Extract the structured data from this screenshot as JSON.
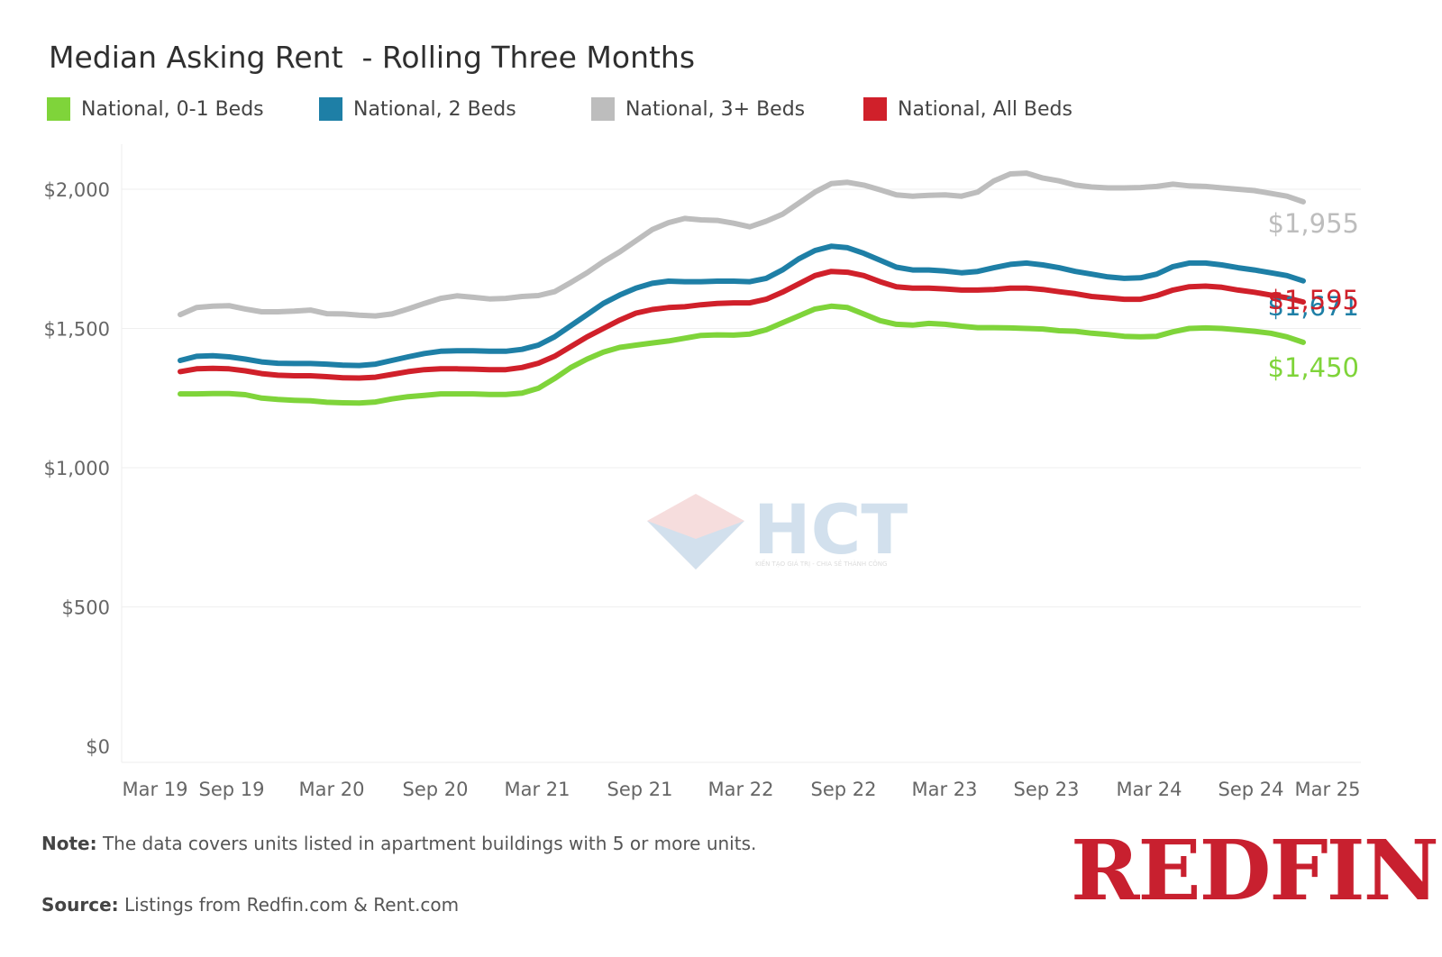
{
  "title": "Median Asking Rent  - Rolling Three Months",
  "legend": [
    {
      "label": "National, 0-1 Beds",
      "color": "#7fd43a"
    },
    {
      "label": "National, 2 Beds",
      "color": "#1e7fa6"
    },
    {
      "label": "National, 3+ Beds",
      "color": "#bdbdbd"
    },
    {
      "label": "National, All Beds",
      "color": "#d0202a"
    }
  ],
  "note_label": "Note:",
  "note_text": " The data covers units listed in apartment buildings with 5 or more units.",
  "source_label": "Source:",
  "source_text": " Listings from Redfin.com & Rent.com",
  "brand": "REDFIN",
  "watermark_text": "HCT",
  "watermark_tagline": "KIẾN TẠO GIÁ TRỊ - CHIA SẺ THÀNH CÔNG",
  "chart_data": {
    "type": "line",
    "title": "Median Asking Rent  - Rolling Three Months",
    "x_tick_labels": [
      "Mar 19",
      "Sep 19",
      "Mar 20",
      "Sep 20",
      "Mar 21",
      "Sep 21",
      "Mar 22",
      "Sep 22",
      "Mar 23",
      "Sep 23",
      "Mar 24",
      "Sep 24",
      "Mar 25"
    ],
    "y_tick_labels": [
      "$0",
      "$500",
      "$1,000",
      "$1,500",
      "$2,000"
    ],
    "y_ticks": [
      0,
      500,
      1000,
      1500,
      2000
    ],
    "ylim": [
      0,
      2150
    ],
    "grid": true,
    "legend_position": "top",
    "x": [
      "2019-04",
      "2019-05",
      "2019-06",
      "2019-07",
      "2019-08",
      "2019-09",
      "2019-10",
      "2019-11",
      "2019-12",
      "2020-01",
      "2020-02",
      "2020-03",
      "2020-04",
      "2020-05",
      "2020-06",
      "2020-07",
      "2020-08",
      "2020-09",
      "2020-10",
      "2020-11",
      "2020-12",
      "2021-01",
      "2021-02",
      "2021-03",
      "2021-04",
      "2021-05",
      "2021-06",
      "2021-07",
      "2021-08",
      "2021-09",
      "2021-10",
      "2021-11",
      "2021-12",
      "2022-01",
      "2022-02",
      "2022-03",
      "2022-04",
      "2022-05",
      "2022-06",
      "2022-07",
      "2022-08",
      "2022-09",
      "2022-10",
      "2022-11",
      "2022-12",
      "2023-01",
      "2023-02",
      "2023-03",
      "2023-04",
      "2023-05",
      "2023-06",
      "2023-07",
      "2023-08",
      "2023-09",
      "2023-10",
      "2023-11",
      "2023-12",
      "2024-01",
      "2024-02",
      "2024-03",
      "2024-04",
      "2024-05",
      "2024-06",
      "2024-07",
      "2024-08",
      "2024-09",
      "2024-10",
      "2024-11",
      "2024-12",
      "2025-01"
    ],
    "series": [
      {
        "name": "National, 3+ Beds",
        "color": "#bdbdbd",
        "values": [
          1550,
          1575,
          1580,
          1582,
          1570,
          1560,
          1560,
          1562,
          1566,
          1553,
          1552,
          1548,
          1545,
          1552,
          1570,
          1590,
          1608,
          1617,
          1612,
          1606,
          1608,
          1615,
          1618,
          1632,
          1665,
          1700,
          1740,
          1775,
          1815,
          1855,
          1880,
          1895,
          1890,
          1888,
          1878,
          1865,
          1885,
          1910,
          1950,
          1990,
          2020,
          2025,
          2015,
          1998,
          1980,
          1975,
          1978,
          1980,
          1975,
          1990,
          2030,
          2055,
          2058,
          2040,
          2030,
          2015,
          2008,
          2005,
          2005,
          2006,
          2010,
          2018,
          2012,
          2010,
          2005,
          2000,
          1995,
          1985,
          1975,
          1955
        ],
        "end_label": "$1,955"
      },
      {
        "name": "National, 2 Beds",
        "color": "#1e7fa6",
        "values": [
          1385,
          1400,
          1402,
          1398,
          1390,
          1380,
          1375,
          1374,
          1374,
          1372,
          1368,
          1367,
          1372,
          1385,
          1398,
          1410,
          1418,
          1420,
          1420,
          1418,
          1418,
          1425,
          1440,
          1470,
          1510,
          1550,
          1590,
          1620,
          1645,
          1662,
          1670,
          1668,
          1668,
          1670,
          1670,
          1668,
          1680,
          1710,
          1750,
          1780,
          1795,
          1790,
          1770,
          1745,
          1720,
          1710,
          1710,
          1706,
          1700,
          1705,
          1718,
          1730,
          1735,
          1728,
          1718,
          1705,
          1695,
          1685,
          1680,
          1682,
          1695,
          1722,
          1735,
          1735,
          1728,
          1718,
          1710,
          1700,
          1690,
          1671
        ],
        "end_label": "$1,671"
      },
      {
        "name": "National, All Beds",
        "color": "#d0202a",
        "values": [
          1345,
          1355,
          1357,
          1355,
          1348,
          1338,
          1332,
          1330,
          1330,
          1327,
          1323,
          1322,
          1325,
          1335,
          1345,
          1352,
          1355,
          1355,
          1354,
          1352,
          1352,
          1360,
          1375,
          1400,
          1435,
          1470,
          1500,
          1530,
          1555,
          1568,
          1575,
          1578,
          1585,
          1590,
          1592,
          1592,
          1605,
          1630,
          1660,
          1690,
          1705,
          1702,
          1690,
          1668,
          1650,
          1645,
          1645,
          1642,
          1638,
          1638,
          1640,
          1645,
          1645,
          1640,
          1632,
          1625,
          1615,
          1610,
          1605,
          1605,
          1618,
          1638,
          1650,
          1652,
          1648,
          1638,
          1630,
          1620,
          1610,
          1595
        ],
        "end_label": "$1,595"
      },
      {
        "name": "National, 0-1 Beds",
        "color": "#7fd43a",
        "values": [
          1265,
          1265,
          1266,
          1266,
          1262,
          1250,
          1245,
          1242,
          1240,
          1235,
          1233,
          1232,
          1236,
          1247,
          1255,
          1260,
          1265,
          1265,
          1265,
          1263,
          1263,
          1268,
          1285,
          1320,
          1360,
          1390,
          1415,
          1432,
          1440,
          1448,
          1455,
          1465,
          1475,
          1477,
          1476,
          1480,
          1495,
          1520,
          1545,
          1570,
          1580,
          1575,
          1552,
          1528,
          1515,
          1512,
          1518,
          1515,
          1508,
          1503,
          1503,
          1502,
          1500,
          1498,
          1492,
          1490,
          1483,
          1478,
          1472,
          1470,
          1472,
          1488,
          1500,
          1502,
          1500,
          1495,
          1490,
          1483,
          1470,
          1450
        ],
        "end_label": "$1,450"
      }
    ]
  }
}
